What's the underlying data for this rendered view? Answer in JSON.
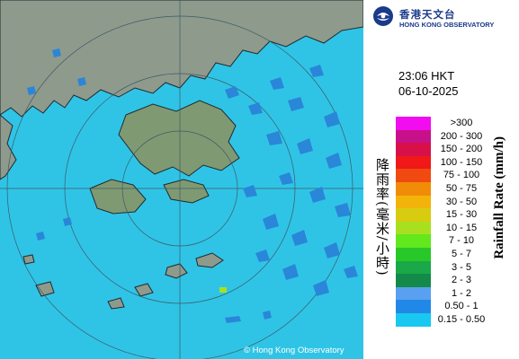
{
  "map": {
    "copyright": "© Hong Kong Observatory",
    "colors": {
      "sea_rain": "#2fc4e6",
      "land": "#8e9a8c",
      "ring": "#3c5a68",
      "coast": "#1f2a30",
      "radar_echo": "#2a86d8"
    }
  },
  "header": {
    "logo_zh": "香港天文台",
    "logo_en": "HONG KONG OBSERVATORY",
    "logo_icon": "hko-logo-icon"
  },
  "timestamp": {
    "time": "23:06 HKT",
    "date": "06-10-2025"
  },
  "legend": {
    "title_zh": "降雨率(毫米/小時)",
    "title_en": "Rainfall Rate (mm/h)",
    "bins": [
      {
        "label": ">300",
        "color": "#f20cf0"
      },
      {
        "label": "200 - 300",
        "color": "#c8108a"
      },
      {
        "label": "150 - 200",
        "color": "#d8104a"
      },
      {
        "label": "100 - 150",
        "color": "#f01818"
      },
      {
        "label": "75 - 100",
        "color": "#f04a10"
      },
      {
        "label": "50 - 75",
        "color": "#f08c08"
      },
      {
        "label": "30 - 50",
        "color": "#f2b40a"
      },
      {
        "label": "15 - 30",
        "color": "#d8cc10"
      },
      {
        "label": "10 - 15",
        "color": "#a8e020"
      },
      {
        "label": "7 - 10",
        "color": "#62e81c"
      },
      {
        "label": "5 - 7",
        "color": "#28c828"
      },
      {
        "label": "3 - 5",
        "color": "#1aa848"
      },
      {
        "label": "2 - 3",
        "color": "#138a4a"
      },
      {
        "label": "1 - 2",
        "color": "#5aa0f0"
      },
      {
        "label": "0.50 - 1",
        "color": "#2288e8"
      },
      {
        "label": "0.15 - 0.50",
        "color": "#18c8f0"
      }
    ]
  }
}
